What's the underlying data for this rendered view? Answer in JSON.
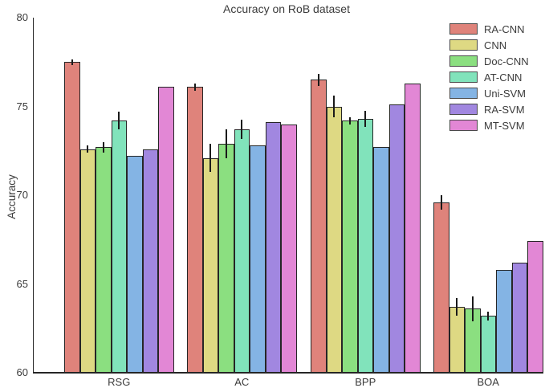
{
  "chart_data": {
    "type": "bar",
    "title": "Accuracy on RoB dataset",
    "xlabel": "",
    "ylabel": "Accuracy",
    "ylim": [
      60,
      80
    ],
    "yticks": [
      60,
      65,
      70,
      75,
      80
    ],
    "categories": [
      "RSG",
      "AC",
      "BPP",
      "BOA"
    ],
    "grid": false,
    "legend_position": "upper right",
    "axis_color": "#262626",
    "text_color": "#3b3b3b",
    "series": [
      {
        "name": "RA-CNN",
        "color": "#df837b",
        "values": [
          77.5,
          76.1,
          76.5,
          69.6
        ],
        "errors": [
          0.15,
          0.2,
          0.35,
          0.4
        ]
      },
      {
        "name": "CNN",
        "color": "#ded983",
        "values": [
          72.6,
          72.1,
          75.0,
          63.7
        ],
        "errors": [
          0.2,
          0.8,
          0.6,
          0.5
        ]
      },
      {
        "name": "Doc-CNN",
        "color": "#8bdf80",
        "values": [
          72.7,
          72.9,
          74.2,
          63.6
        ],
        "errors": [
          0.3,
          0.8,
          0.2,
          0.7
        ]
      },
      {
        "name": "AT-CNN",
        "color": "#81e3bb",
        "values": [
          74.2,
          73.7,
          74.3,
          63.2
        ],
        "errors": [
          0.5,
          0.55,
          0.45,
          0.25
        ]
      },
      {
        "name": "Uni-SVM",
        "color": "#84b4e4",
        "values": [
          72.2,
          72.8,
          72.7,
          65.8
        ],
        "errors": [
          0,
          0,
          0,
          0
        ]
      },
      {
        "name": "RA-SVM",
        "color": "#a187e0",
        "values": [
          72.6,
          74.1,
          75.1,
          66.2
        ],
        "errors": [
          0,
          0,
          0,
          0
        ]
      },
      {
        "name": "MT-SVM",
        "color": "#e287d5",
        "values": [
          76.1,
          74.0,
          76.3,
          67.4
        ],
        "errors": [
          0,
          0,
          0,
          0
        ]
      }
    ]
  }
}
